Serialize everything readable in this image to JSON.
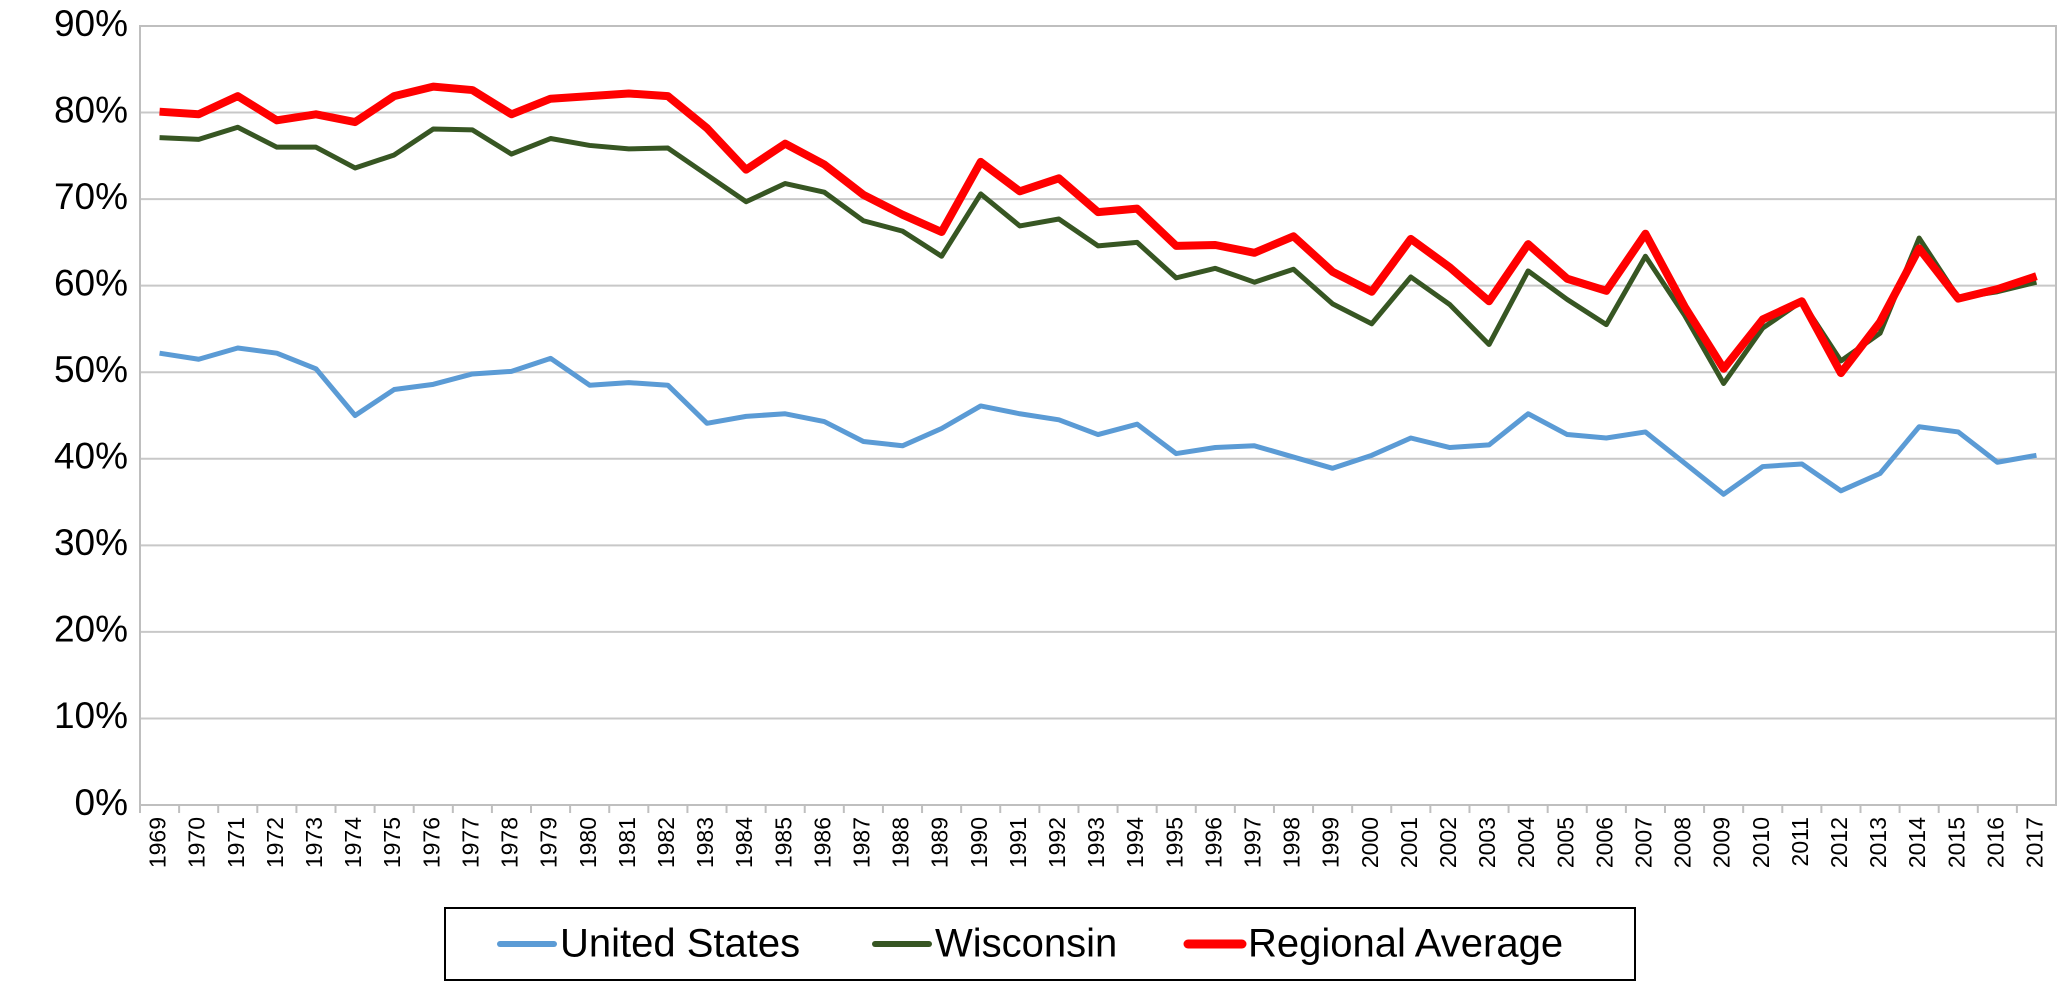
{
  "chart_data": {
    "type": "line",
    "categories": [
      "1969",
      "1970",
      "1971",
      "1972",
      "1973",
      "1974",
      "1975",
      "1976",
      "1977",
      "1978",
      "1979",
      "1980",
      "1981",
      "1982",
      "1983",
      "1984",
      "1985",
      "1986",
      "1987",
      "1988",
      "1989",
      "1990",
      "1991",
      "1992",
      "1993",
      "1994",
      "1995",
      "1996",
      "1997",
      "1998",
      "1999",
      "2000",
      "2001",
      "2002",
      "2003",
      "2004",
      "2005",
      "2006",
      "2007",
      "2008",
      "2009",
      "2010",
      "2011",
      "2012",
      "2013",
      "2014",
      "2015",
      "2016",
      "2017"
    ],
    "series": [
      {
        "name": "United States",
        "color": "#5b9bd5",
        "values": [
          52.2,
          51.5,
          52.8,
          52.2,
          50.4,
          45.0,
          48.0,
          48.6,
          49.8,
          50.1,
          51.6,
          48.5,
          48.8,
          48.5,
          44.1,
          44.9,
          45.2,
          44.3,
          42.0,
          41.5,
          43.5,
          46.1,
          45.2,
          44.5,
          42.8,
          44.0,
          40.6,
          41.3,
          41.5,
          40.2,
          38.9,
          40.4,
          42.4,
          41.3,
          41.6,
          45.2,
          42.8,
          42.4,
          43.1,
          39.5,
          35.9,
          39.1,
          39.4,
          36.3,
          38.3,
          43.7,
          43.1,
          39.6,
          40.4
        ]
      },
      {
        "name": "Wisconsin",
        "color": "#375623",
        "values": [
          77.1,
          76.9,
          78.3,
          76.0,
          76.0,
          73.6,
          75.1,
          78.1,
          78.0,
          75.2,
          77.0,
          76.2,
          75.8,
          75.9,
          72.8,
          69.7,
          71.8,
          70.8,
          67.5,
          66.3,
          63.4,
          70.6,
          66.9,
          67.7,
          64.6,
          65.0,
          60.9,
          62.0,
          60.4,
          61.9,
          57.9,
          55.6,
          61.0,
          57.8,
          53.2,
          61.7,
          58.4,
          55.5,
          63.4,
          56.6,
          48.7,
          55.1,
          58.2,
          51.3,
          54.5,
          65.5,
          58.6,
          59.3,
          60.4
        ]
      },
      {
        "name": "Regional Average",
        "color": "#ff0000",
        "values": [
          80.1,
          79.8,
          81.9,
          79.1,
          79.8,
          78.9,
          81.9,
          83.0,
          82.6,
          79.8,
          81.6,
          81.9,
          82.2,
          81.9,
          78.2,
          73.4,
          76.4,
          74.0,
          70.5,
          68.2,
          66.2,
          74.3,
          70.9,
          72.4,
          68.5,
          68.9,
          64.6,
          64.7,
          63.8,
          65.7,
          61.6,
          59.3,
          65.4,
          62.1,
          58.2,
          64.8,
          60.8,
          59.4,
          66.0,
          57.6,
          50.4,
          56.1,
          58.2,
          49.9,
          55.8,
          64.3,
          58.5,
          59.6,
          61.1
        ]
      }
    ],
    "ylim": [
      0,
      90
    ],
    "yticks": [
      {
        "value": 0,
        "label": "0%"
      },
      {
        "value": 10,
        "label": "10%"
      },
      {
        "value": 20,
        "label": "20%"
      },
      {
        "value": 30,
        "label": "30%"
      },
      {
        "value": 40,
        "label": "40%"
      },
      {
        "value": 50,
        "label": "50%"
      },
      {
        "value": 60,
        "label": "60%"
      },
      {
        "value": 70,
        "label": "70%"
      },
      {
        "value": 80,
        "label": "80%"
      },
      {
        "value": 90,
        "label": "90%"
      }
    ],
    "grid": true,
    "legend": "bottom"
  }
}
